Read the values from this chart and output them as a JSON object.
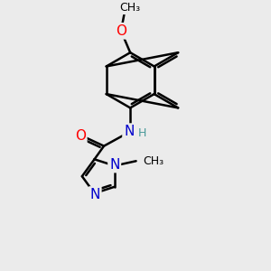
{
  "bg_color": "#ebebeb",
  "bond_color": "#000000",
  "bond_width": 1.8,
  "atom_colors": {
    "O": "#ff0000",
    "N": "#0000cc",
    "H": "#4a9a9a",
    "C": "#000000"
  },
  "font_size": 10,
  "figsize": [
    3.0,
    3.0
  ],
  "dpi": 100
}
